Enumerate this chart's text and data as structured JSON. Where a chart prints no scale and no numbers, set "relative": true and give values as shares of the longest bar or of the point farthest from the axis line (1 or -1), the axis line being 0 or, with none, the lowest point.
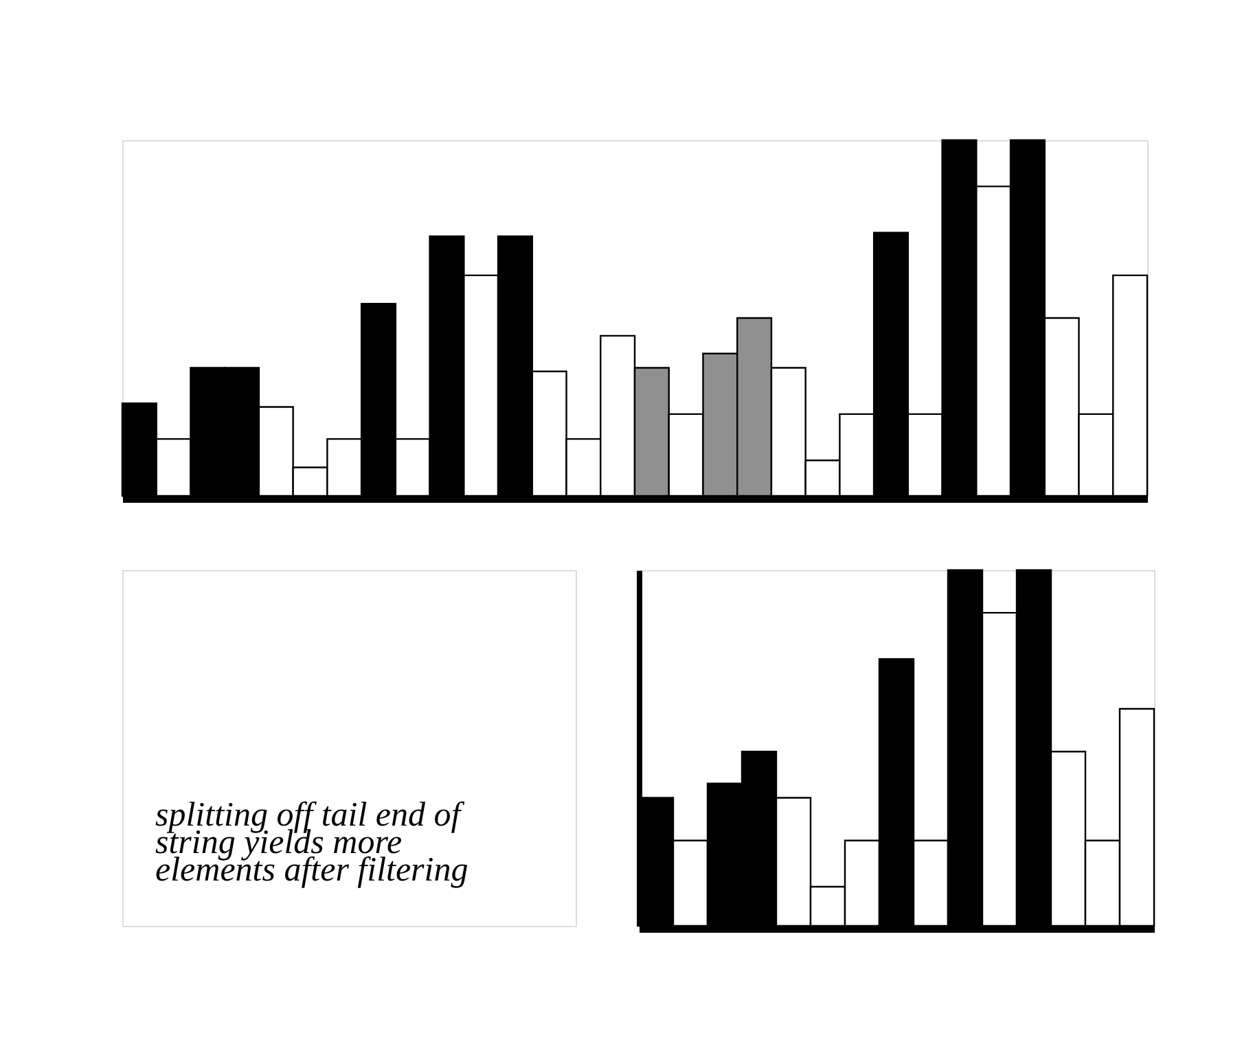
{
  "chart_data": [
    {
      "type": "bar",
      "relative": true,
      "categories": [
        null,
        null,
        null,
        null,
        null,
        null,
        null,
        null,
        null,
        null,
        null,
        null,
        null,
        null,
        null,
        null,
        null,
        null,
        null,
        null,
        null,
        null,
        null,
        null,
        null,
        null,
        null,
        null,
        null,
        null
      ],
      "values": [
        0.26,
        0.16,
        0.36,
        0.36,
        0.25,
        0.08,
        0.16,
        0.54,
        0.16,
        0.73,
        0.62,
        0.73,
        0.35,
        0.16,
        0.45,
        0.36,
        0.23,
        0.4,
        0.5,
        0.36,
        0.1,
        0.23,
        0.74,
        0.23,
        1.0,
        0.87,
        1.0,
        0.5,
        0.23,
        0.62
      ],
      "colors": [
        "#000000",
        "#ffffff",
        "#000000",
        "#000000",
        "#ffffff",
        "#ffffff",
        "#ffffff",
        "#000000",
        "#ffffff",
        "#000000",
        "#ffffff",
        "#000000",
        "#ffffff",
        "#ffffff",
        "#ffffff",
        "#909090",
        "#ffffff",
        "#909090",
        "#909090",
        "#ffffff",
        "#ffffff",
        "#ffffff",
        "#000000",
        "#ffffff",
        "#000000",
        "#ffffff",
        "#000000",
        "#ffffff",
        "#ffffff",
        "#ffffff"
      ]
    },
    {
      "type": "bar",
      "relative": true,
      "categories": [
        null,
        null,
        null,
        null,
        null,
        null,
        null,
        null,
        null,
        null,
        null,
        null,
        null,
        null,
        null
      ],
      "values": [
        0.36,
        0.24,
        0.4,
        0.49,
        0.36,
        0.11,
        0.24,
        0.75,
        0.24,
        1.0,
        0.88,
        1.0,
        0.49,
        0.24,
        0.61
      ],
      "colors": [
        "#000000",
        "#ffffff",
        "#000000",
        "#000000",
        "#ffffff",
        "#ffffff",
        "#ffffff",
        "#000000",
        "#ffffff",
        "#000000",
        "#ffffff",
        "#000000",
        "#ffffff",
        "#ffffff",
        "#ffffff"
      ],
      "annotations": [
        "splitting off tail end of\nstring yields more\nelements after filtering"
      ]
    }
  ]
}
